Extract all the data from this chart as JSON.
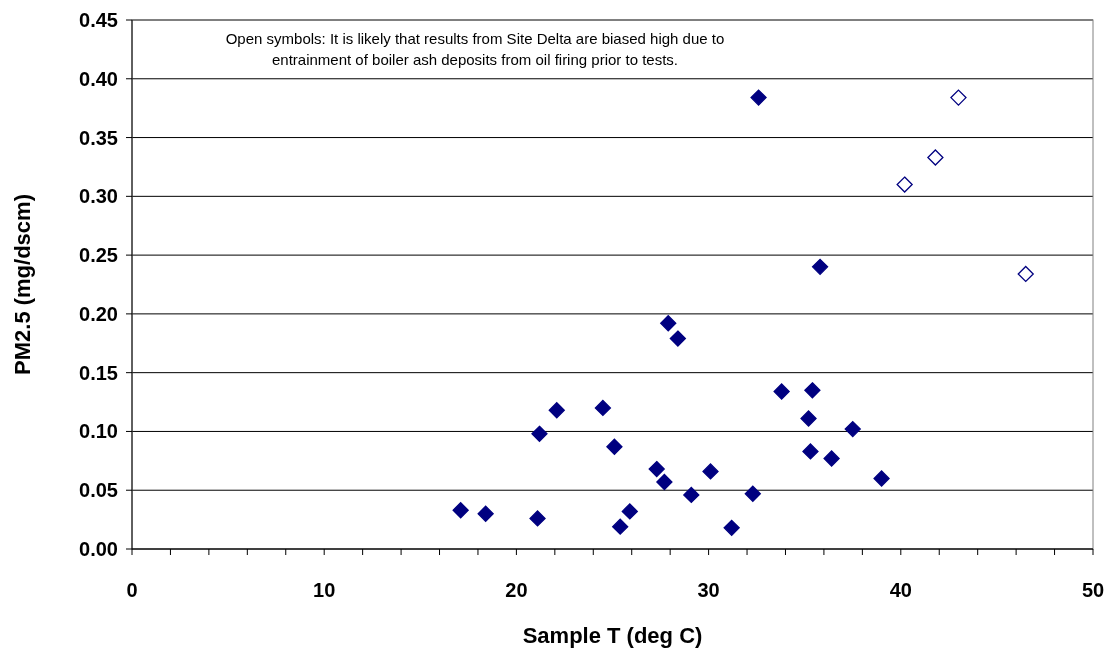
{
  "chart_data": {
    "type": "scatter",
    "xlabel": "Sample T (deg C)",
    "ylabel": "PM2.5 (mg/dscm)",
    "annotations": [
      "Open symbols:  It is likely that results from Site Delta are biased high due to",
      "entrainment of boiler ash deposits from oil firing prior to tests."
    ],
    "series": [
      {
        "color": "#000080",
        "x": [
          17.1,
          18.4,
          21.1,
          21.2,
          22.1,
          24.5,
          25.1,
          25.4,
          25.9,
          27.3,
          27.7,
          27.9,
          28.4,
          29.1,
          30.1,
          31.2,
          32.3,
          32.6,
          33.8,
          35.2,
          35.3,
          35.4,
          35.8,
          36.4,
          37.5,
          39.0
        ],
        "values": [
          0.033,
          0.03,
          0.026,
          0.098,
          0.118,
          0.12,
          0.087,
          0.019,
          0.032,
          0.068,
          0.057,
          0.192,
          0.179,
          0.046,
          0.066,
          0.018,
          0.047,
          0.384,
          0.134,
          0.111,
          0.083,
          0.135,
          0.24,
          0.077,
          0.102,
          0.06
        ]
      },
      {
        "color": "#000080",
        "colors": [
          "#ffffff",
          "#ffffff",
          "#ffffff",
          "#ffffff"
        ],
        "x": [
          40.2,
          41.8,
          43.0,
          46.5
        ],
        "values": [
          0.31,
          0.333,
          0.384,
          0.234
        ]
      }
    ],
    "xlim": [
      0,
      50
    ],
    "xticks": [
      0,
      {
        "value": 2,
        "label": null
      },
      {
        "value": 4,
        "label": null
      },
      {
        "value": 6,
        "label": null
      },
      {
        "value": 8,
        "label": null
      },
      10,
      {
        "value": 12,
        "label": null
      },
      {
        "value": 14,
        "label": null
      },
      {
        "value": 16,
        "label": null
      },
      {
        "value": 18,
        "label": null
      },
      20,
      {
        "value": 22,
        "label": null
      },
      {
        "value": 24,
        "label": null
      },
      {
        "value": 26,
        "label": null
      },
      {
        "value": 28,
        "label": null
      },
      30,
      {
        "value": 32,
        "label": null
      },
      {
        "value": 34,
        "label": null
      },
      {
        "value": 36,
        "label": null
      },
      {
        "value": 38,
        "label": null
      },
      40,
      {
        "value": 42,
        "label": null
      },
      {
        "value": 44,
        "label": null
      },
      {
        "value": 46,
        "label": null
      },
      {
        "value": 48,
        "label": null
      },
      50
    ],
    "ylim": [
      0,
      0.45
    ],
    "yticks": [
      {
        "value": 0,
        "label": "0.00"
      },
      {
        "value": 0.05,
        "label": "0.05"
      },
      {
        "value": 0.1,
        "label": "0.10"
      },
      {
        "value": 0.15,
        "label": "0.15"
      },
      {
        "value": 0.2,
        "label": "0.20"
      },
      {
        "value": 0.25,
        "label": "0.25"
      },
      {
        "value": 0.3,
        "label": "0.30"
      },
      {
        "value": 0.35,
        "label": "0.35"
      },
      {
        "value": 0.4,
        "label": "0.40"
      },
      {
        "value": 0.45,
        "label": "0.45"
      }
    ],
    "grid": "y",
    "marker": "diamond"
  }
}
